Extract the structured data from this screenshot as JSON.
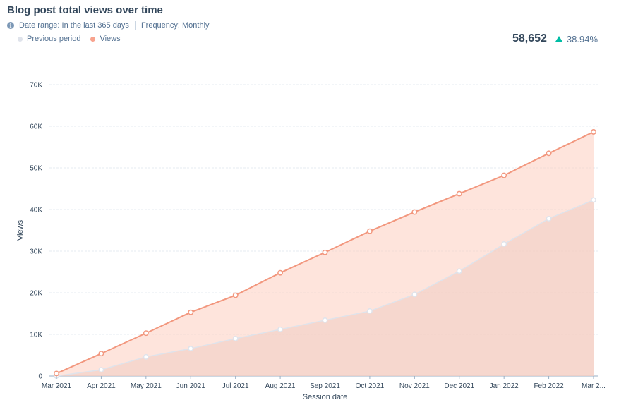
{
  "header": {
    "title": "Blog post total views over time",
    "date_range": "Date range: In the last 365 days",
    "frequency": "Frequency: Monthly",
    "info_icon": "info-icon"
  },
  "legend": [
    {
      "label": "Previous period",
      "color": "#dfe3eb"
    },
    {
      "label": "Views",
      "color": "#f8a38e"
    }
  ],
  "kpi": {
    "value": "58,652",
    "change": "38.94%",
    "trend_icon": "triangle-up-icon",
    "trend_color": "#00bda5"
  },
  "chart_data": {
    "type": "area",
    "title": "Blog post total views over time",
    "xlabel": "Session date",
    "ylabel": "Views",
    "ylim": [
      0,
      70000
    ],
    "yticks": [
      0,
      10000,
      20000,
      30000,
      40000,
      50000,
      60000,
      70000
    ],
    "ytick_labels": [
      "0",
      "10K",
      "20K",
      "30K",
      "40K",
      "50K",
      "60K",
      "70K"
    ],
    "grid": true,
    "legend_position": "top-left",
    "categories": [
      "Mar 2021",
      "Apr 2021",
      "May 2021",
      "Jun 2021",
      "Jul 2021",
      "Aug 2021",
      "Sep 2021",
      "Oct 2021",
      "Nov 2021",
      "Dec 2021",
      "Jan 2022",
      "Feb 2022",
      "Mar 2..."
    ],
    "series": [
      {
        "name": "Previous period",
        "color": "#dfe3eb",
        "fill": "rgba(223,203,198,0.55)",
        "values": [
          0,
          1500,
          4600,
          6600,
          9000,
          11200,
          13400,
          15600,
          19600,
          25200,
          31700,
          37800,
          42300
        ]
      },
      {
        "name": "Views",
        "color": "#f2977e",
        "fill": "rgba(253,205,192,0.55)",
        "values": [
          600,
          5400,
          10300,
          15300,
          19400,
          24800,
          29700,
          34800,
          39400,
          43800,
          48200,
          53500,
          58652
        ]
      }
    ]
  }
}
